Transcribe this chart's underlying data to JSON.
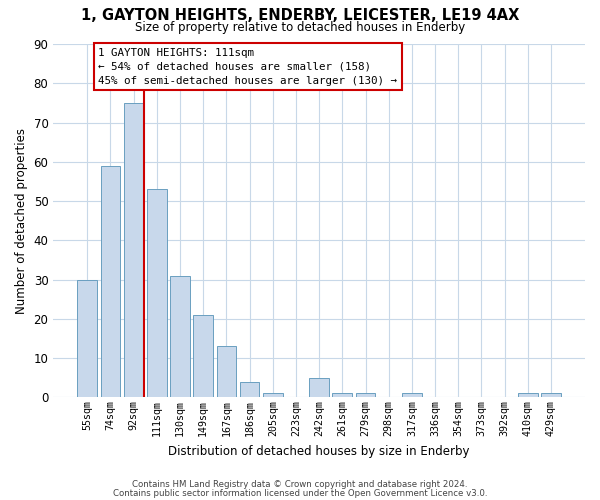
{
  "title": "1, GAYTON HEIGHTS, ENDERBY, LEICESTER, LE19 4AX",
  "subtitle": "Size of property relative to detached houses in Enderby",
  "xlabel": "Distribution of detached houses by size in Enderby",
  "ylabel": "Number of detached properties",
  "bar_color": "#c8d8eb",
  "bar_edge_color": "#6a9fc0",
  "background_color": "#ffffff",
  "grid_color": "#c8d8e8",
  "bin_labels": [
    "55sqm",
    "74sqm",
    "92sqm",
    "111sqm",
    "130sqm",
    "149sqm",
    "167sqm",
    "186sqm",
    "205sqm",
    "223sqm",
    "242sqm",
    "261sqm",
    "279sqm",
    "298sqm",
    "317sqm",
    "336sqm",
    "354sqm",
    "373sqm",
    "392sqm",
    "410sqm",
    "429sqm"
  ],
  "bar_heights": [
    30,
    59,
    75,
    53,
    31,
    21,
    13,
    4,
    1,
    0,
    5,
    1,
    1,
    0,
    1,
    0,
    0,
    0,
    0,
    1,
    1
  ],
  "vline_color": "#cc0000",
  "ylim": [
    0,
    90
  ],
  "yticks": [
    0,
    10,
    20,
    30,
    40,
    50,
    60,
    70,
    80,
    90
  ],
  "annotation_title": "1 GAYTON HEIGHTS: 111sqm",
  "annotation_line1": "← 54% of detached houses are smaller (158)",
  "annotation_line2": "45% of semi-detached houses are larger (130) →",
  "footnote1": "Contains HM Land Registry data © Crown copyright and database right 2024.",
  "footnote2": "Contains public sector information licensed under the Open Government Licence v3.0."
}
